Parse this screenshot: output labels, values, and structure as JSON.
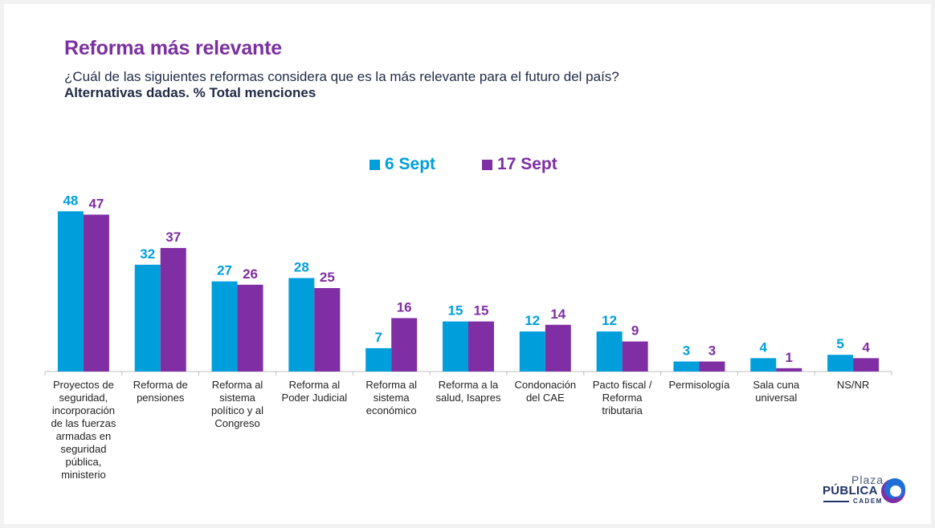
{
  "header": {
    "title": "Reforma más relevante",
    "question": "¿Cuál de las siguientes reformas considera que es la más relevante para el futuro del país?",
    "note": "Alternativas dadas. % Total menciones"
  },
  "colors": {
    "series_1": "#009fdb",
    "series_2": "#7f2ea3",
    "title": "#7b2fa0",
    "text": "#1f2a44"
  },
  "logo": {
    "line1": "Plaza",
    "line2": "PÚBLICA",
    "line3": "CADEM"
  },
  "chart_data": {
    "type": "bar",
    "title": "Reforma más relevante",
    "xlabel": "",
    "ylabel": "% Total menciones",
    "ylim": [
      0,
      50
    ],
    "grid": false,
    "legend_position": "top-center",
    "categories": [
      "Proyectos de seguridad, incorporación de las fuerzas armadas en seguridad pública, ministerio",
      "Reforma de pensiones",
      "Reforma al sistema político y al Congreso",
      "Reforma al Poder Judicial",
      "Reforma al sistema económico",
      "Reforma a la salud, Isapres",
      "Condonación del CAE",
      "Pacto fiscal / Reforma tributaria",
      "Permisología",
      "Sala cuna universal",
      "NS/NR"
    ],
    "category_lines": [
      [
        "Proyectos de",
        "seguridad,",
        "incorporación",
        "de las fuerzas",
        "armadas en",
        "seguridad",
        "pública,",
        "ministerio"
      ],
      [
        "Reforma de",
        "pensiones"
      ],
      [
        "Reforma al",
        "sistema",
        "político y al",
        "Congreso"
      ],
      [
        "Reforma al",
        "Poder Judicial"
      ],
      [
        "Reforma al",
        "sistema",
        "económico"
      ],
      [
        "Reforma a la",
        "salud, Isapres"
      ],
      [
        "Condonación",
        "del CAE"
      ],
      [
        "Pacto fiscal /",
        "Reforma",
        "tributaria"
      ],
      [
        "Permisología"
      ],
      [
        "Sala cuna",
        "universal"
      ],
      [
        "NS/NR"
      ]
    ],
    "series": [
      {
        "name": "6 Sept",
        "color": "#009fdb",
        "values": [
          48,
          32,
          27,
          28,
          7,
          15,
          12,
          12,
          3,
          4,
          5
        ]
      },
      {
        "name": "17 Sept",
        "color": "#7f2ea3",
        "values": [
          47,
          37,
          26,
          25,
          16,
          15,
          14,
          9,
          3,
          1,
          4
        ]
      }
    ]
  }
}
